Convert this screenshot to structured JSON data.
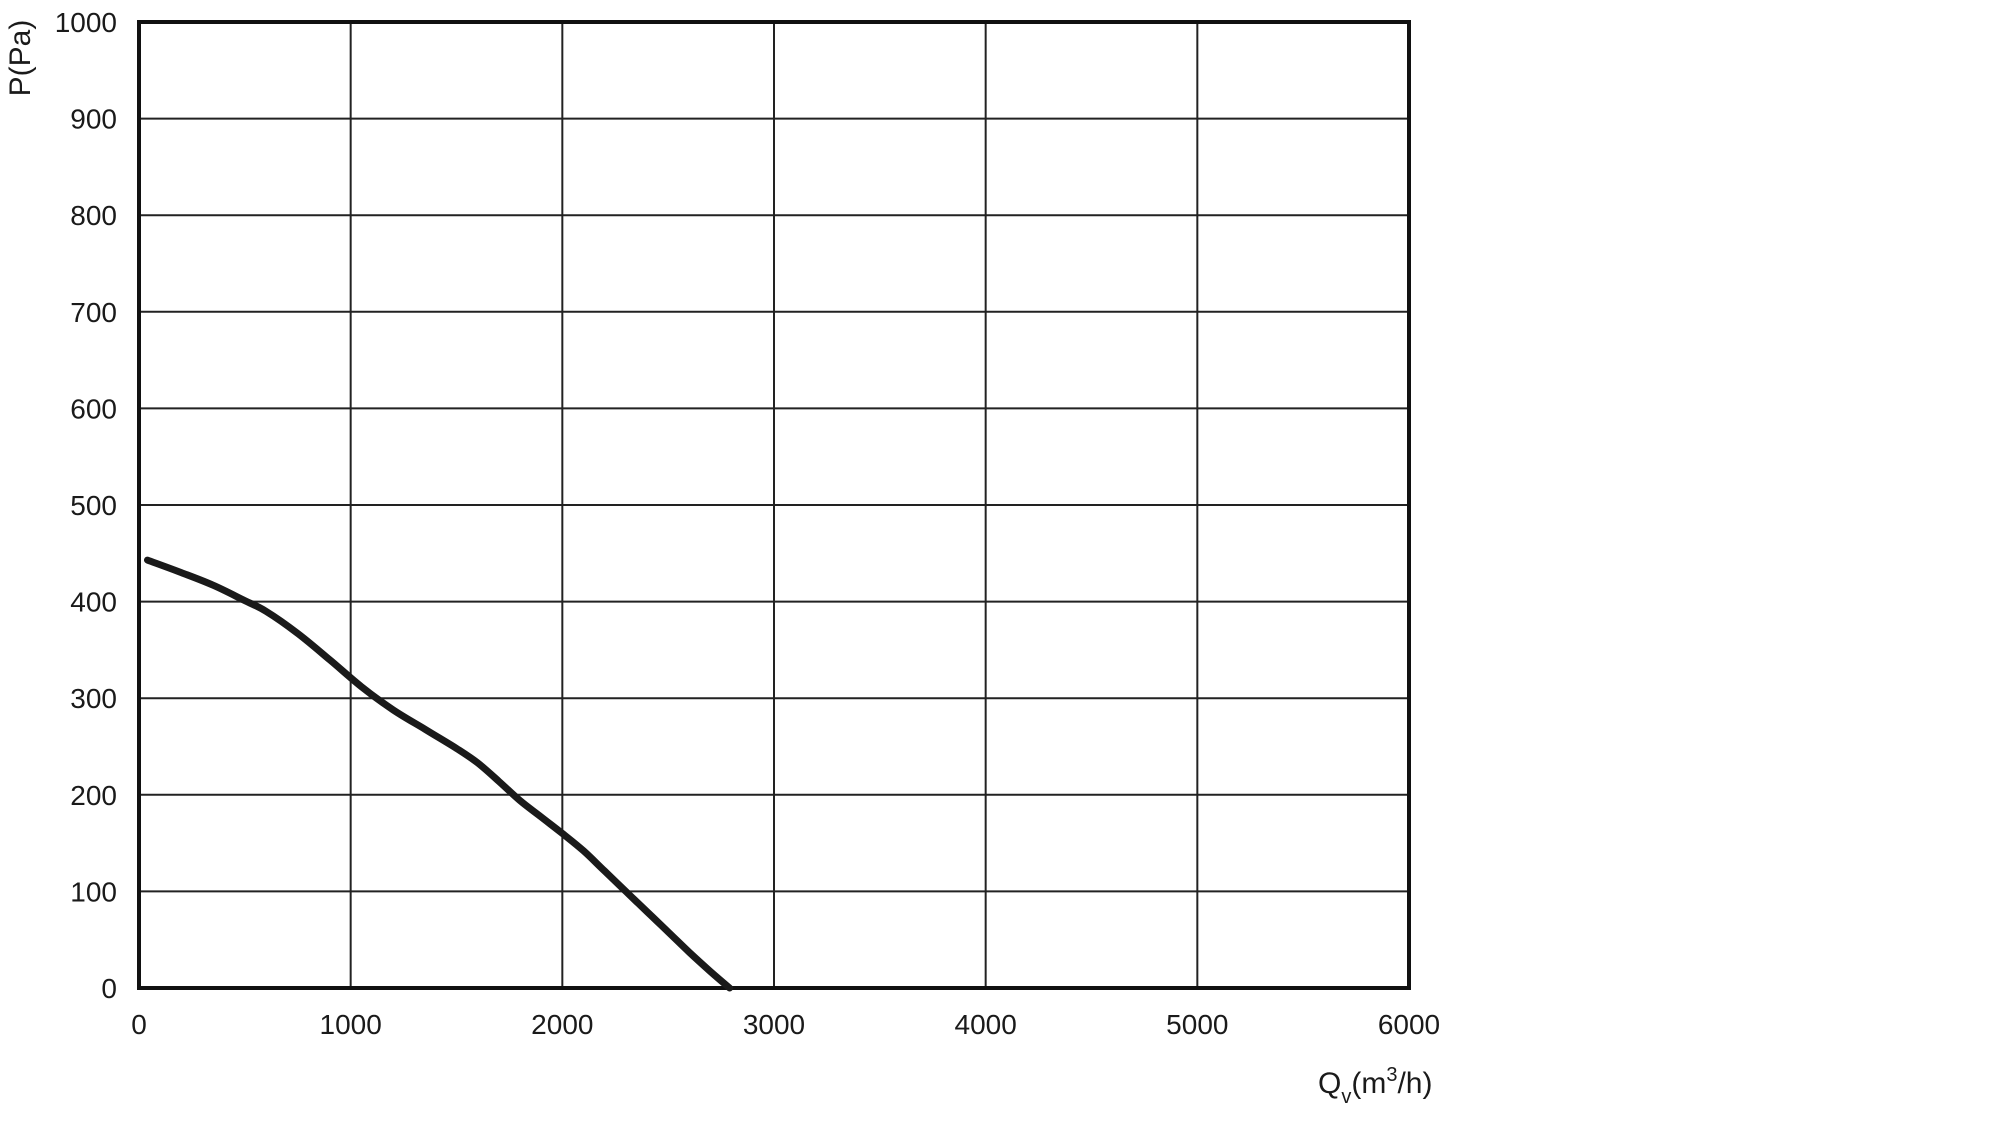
{
  "chart_data": {
    "type": "line",
    "title": "",
    "xlabel": "Q",
    "xlabel_sub": "v",
    "xlabel_rest": "(m",
    "xlabel_sup": "3",
    "xlabel_tail": "/h)",
    "ylabel": "P(Pa)",
    "xlim": [
      0,
      6000
    ],
    "ylim": [
      0,
      1000
    ],
    "x_ticks": [
      0,
      1000,
      2000,
      3000,
      4000,
      5000,
      6000
    ],
    "y_ticks": [
      0,
      100,
      200,
      300,
      400,
      500,
      600,
      700,
      800,
      900,
      1000
    ],
    "x_tick_labels": [
      "0",
      "1000",
      "2000",
      "3000",
      "4000",
      "5000",
      "6000"
    ],
    "y_tick_labels": [
      "0",
      "100",
      "200",
      "300",
      "400",
      "500",
      "600",
      "700",
      "800",
      "900",
      "1000"
    ],
    "grid": true,
    "series": [
      {
        "color": "#1a1a1a",
        "x": [
          40,
          200,
          350,
          500,
          600,
          750,
          900,
          1050,
          1200,
          1350,
          1500,
          1600,
          1700,
          1800,
          1900,
          2000,
          2100,
          2200,
          2300,
          2400,
          2500,
          2600,
          2700,
          2790
        ],
        "y": [
          443,
          430,
          417,
          401,
          390,
          367,
          340,
          312,
          288,
          268,
          248,
          233,
          214,
          194,
          177,
          160,
          142,
          121,
          100,
          79,
          58,
          37,
          17,
          0
        ]
      }
    ]
  }
}
